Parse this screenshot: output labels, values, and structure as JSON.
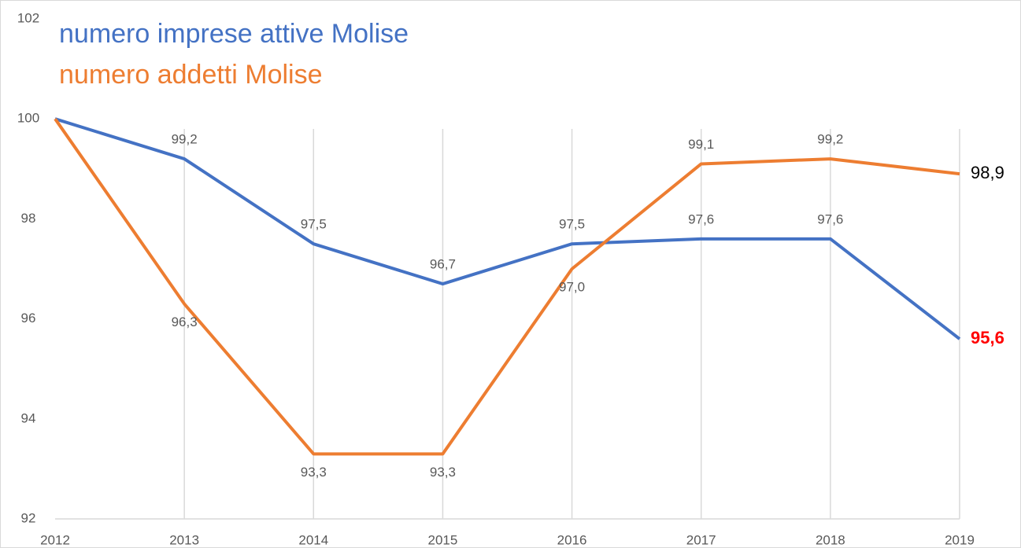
{
  "chart_data": {
    "type": "line",
    "categories": [
      "2012",
      "2013",
      "2014",
      "2015",
      "2016",
      "2017",
      "2018",
      "2019"
    ],
    "series": [
      {
        "name": "numero imprese attive Molise",
        "color": "#4472c4",
        "end_label_color": "#ff0000",
        "values": [
          100,
          99.2,
          97.5,
          96.7,
          97.5,
          97.6,
          97.6,
          95.6
        ],
        "value_labels": [
          null,
          "99,2",
          "97,5",
          "96,7",
          "97,5",
          "97,6",
          "97,6",
          "95,6"
        ]
      },
      {
        "name": "numero addetti Molise",
        "color": "#ed7d31",
        "end_label_color": "#000000",
        "values": [
          100,
          96.3,
          93.3,
          93.3,
          97.0,
          99.1,
          99.2,
          98.9
        ],
        "value_labels": [
          null,
          "96,3",
          "93,3",
          "93,3",
          "97,0",
          "99,1",
          "99,2",
          "98,9"
        ]
      }
    ],
    "ylim": [
      92,
      102
    ],
    "yticks": [
      92,
      94,
      96,
      98,
      100,
      102
    ],
    "grid": true
  }
}
